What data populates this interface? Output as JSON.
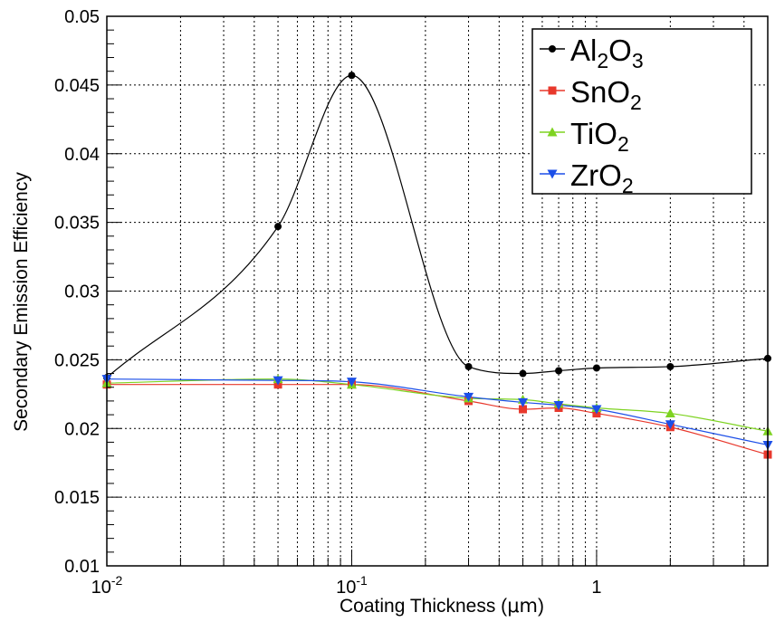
{
  "chart_data": {
    "type": "line",
    "xlabel_prefix": "Coating Thickness (",
    "xlabel_unit": "μm",
    "xlabel_suffix": ")",
    "ylabel": "Secondary Emission Efficiency",
    "x_scale": "log",
    "xlim": [
      0.01,
      5.0
    ],
    "ylim": [
      0.01,
      0.05
    ],
    "grid": true,
    "legend_position": "top-right",
    "x_ticks": [
      {
        "value": 0.01,
        "base": "10",
        "exp": "-2"
      },
      {
        "value": 0.1,
        "base": "10",
        "exp": "-1"
      },
      {
        "value": 1,
        "base": "1",
        "exp": ""
      }
    ],
    "y_ticks": [
      {
        "value": 0.01,
        "label": "0.01"
      },
      {
        "value": 0.015,
        "label": "0.015"
      },
      {
        "value": 0.02,
        "label": "0.02"
      },
      {
        "value": 0.025,
        "label": "0.025"
      },
      {
        "value": 0.03,
        "label": "0.03"
      },
      {
        "value": 0.035,
        "label": "0.035"
      },
      {
        "value": 0.04,
        "label": "0.04"
      },
      {
        "value": 0.045,
        "label": "0.045"
      },
      {
        "value": 0.05,
        "label": "0.05"
      }
    ],
    "x": [
      0.01,
      0.05,
      0.1,
      0.3,
      0.5,
      0.7,
      1.0,
      2.0,
      5.0
    ],
    "series": [
      {
        "name": "Al2O3",
        "label_parts": [
          [
            "Al",
            ""
          ],
          [
            "2",
            "sub"
          ],
          [
            "O",
            ""
          ],
          [
            "3",
            "sub"
          ]
        ],
        "color": "#000000",
        "marker": "circle",
        "values": [
          0.0237,
          0.0347,
          0.0457,
          0.0245,
          0.024,
          0.0242,
          0.0244,
          0.0245,
          0.0251
        ]
      },
      {
        "name": "SnO2",
        "label_parts": [
          [
            "SnO",
            ""
          ],
          [
            "2",
            "sub"
          ]
        ],
        "color": "#e8382c",
        "marker": "square",
        "values": [
          0.0232,
          0.0232,
          0.0232,
          0.022,
          0.0214,
          0.0215,
          0.0211,
          0.0201,
          0.0181
        ]
      },
      {
        "name": "TiO2",
        "label_parts": [
          [
            "TiO",
            ""
          ],
          [
            "2",
            "sub"
          ]
        ],
        "color": "#7ed321",
        "marker": "triangle-up",
        "values": [
          0.0233,
          0.0236,
          0.0232,
          0.0222,
          0.0221,
          0.0218,
          0.0215,
          0.0211,
          0.0198
        ]
      },
      {
        "name": "ZrO2",
        "label_parts": [
          [
            "ZrO",
            ""
          ],
          [
            "2",
            "sub"
          ]
        ],
        "color": "#1c4fe8",
        "marker": "triangle-down",
        "values": [
          0.0236,
          0.0235,
          0.0234,
          0.0223,
          0.0219,
          0.0217,
          0.0214,
          0.0203,
          0.0188
        ]
      }
    ]
  }
}
